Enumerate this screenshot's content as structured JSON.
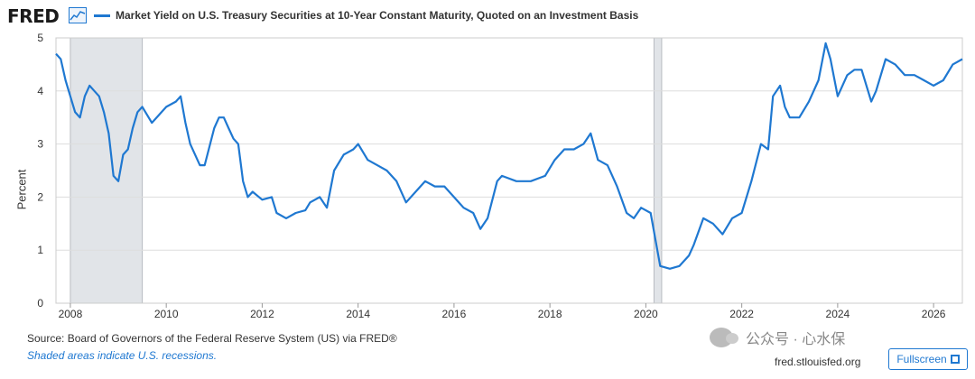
{
  "header": {
    "logo": "FRED",
    "logo_icon": "chart-line-icon",
    "series_title": "Market Yield on U.S. Treasury Securities at 10-Year Constant Maturity, Quoted on an Investment Basis"
  },
  "footer": {
    "source": "Source: Board of Governors of the Federal Reserve System (US) via FRED®",
    "shaded_note": "Shaded areas indicate U.S. recessions.",
    "site": "fred.stlouisfed.org",
    "fullscreen_label": "Fullscreen",
    "fullscreen_icon": "fullscreen-icon",
    "watermark": "公众号 · 心水保"
  },
  "colors": {
    "series": "#1f78d1",
    "recession": "#e1e4e8",
    "grid": "#dddddd"
  },
  "chart_data": {
    "type": "line",
    "title": "",
    "xlabel": "",
    "ylabel": "Percent",
    "xlim": [
      2007.7,
      2026.6
    ],
    "ylim": [
      0,
      5
    ],
    "x_ticks": [
      2008,
      2010,
      2012,
      2014,
      2016,
      2018,
      2020,
      2022,
      2024,
      2026
    ],
    "y_ticks": [
      0,
      1,
      2,
      3,
      4,
      5
    ],
    "grid": true,
    "recessions": [
      [
        2008.0,
        2009.5
      ],
      [
        2020.17,
        2020.33
      ]
    ],
    "series": [
      {
        "x": [
          2007.7,
          2007.8,
          2007.9,
          2008.0,
          2008.1,
          2008.2,
          2008.3,
          2008.4,
          2008.5,
          2008.6,
          2008.7,
          2008.8,
          2008.9,
          2009.0,
          2009.1,
          2009.2,
          2009.3,
          2009.4,
          2009.5,
          2009.7,
          2009.9,
          2010.0,
          2010.2,
          2010.3,
          2010.4,
          2010.5,
          2010.6,
          2010.7,
          2010.8,
          2011.0,
          2011.1,
          2011.2,
          2011.3,
          2011.4,
          2011.5,
          2011.6,
          2011.7,
          2011.8,
          2012.0,
          2012.2,
          2012.3,
          2012.5,
          2012.7,
          2012.9,
          2013.0,
          2013.2,
          2013.35,
          2013.5,
          2013.7,
          2013.9,
          2014.0,
          2014.2,
          2014.4,
          2014.6,
          2014.8,
          2015.0,
          2015.2,
          2015.4,
          2015.6,
          2015.8,
          2016.0,
          2016.2,
          2016.4,
          2016.55,
          2016.7,
          2016.9,
          2017.0,
          2017.3,
          2017.6,
          2017.9,
          2018.1,
          2018.3,
          2018.5,
          2018.7,
          2018.85,
          2019.0,
          2019.2,
          2019.4,
          2019.6,
          2019.75,
          2019.9,
          2020.1,
          2020.2,
          2020.3,
          2020.5,
          2020.7,
          2020.9,
          2021.0,
          2021.2,
          2021.4,
          2021.6,
          2021.8,
          2022.0,
          2022.2,
          2022.4,
          2022.55,
          2022.65,
          2022.8,
          2022.9,
          2023.0,
          2023.2,
          2023.4,
          2023.6,
          2023.75,
          2023.85,
          2024.0,
          2024.2,
          2024.35,
          2024.5,
          2024.7,
          2024.8,
          2024.9,
          2025.0,
          2025.2,
          2025.4,
          2025.6,
          2025.8,
          2026.0,
          2026.2,
          2026.4,
          2026.6
        ],
        "values": [
          4.7,
          4.6,
          4.2,
          3.9,
          3.6,
          3.5,
          3.9,
          4.1,
          4.0,
          3.9,
          3.6,
          3.2,
          2.4,
          2.3,
          2.8,
          2.9,
          3.3,
          3.6,
          3.7,
          3.4,
          3.6,
          3.7,
          3.8,
          3.9,
          3.4,
          3.0,
          2.8,
          2.6,
          2.6,
          3.3,
          3.5,
          3.5,
          3.3,
          3.1,
          3.0,
          2.3,
          2.0,
          2.1,
          1.95,
          2.0,
          1.7,
          1.6,
          1.7,
          1.75,
          1.9,
          2.0,
          1.8,
          2.5,
          2.8,
          2.9,
          3.0,
          2.7,
          2.6,
          2.5,
          2.3,
          1.9,
          2.1,
          2.3,
          2.2,
          2.2,
          2.0,
          1.8,
          1.7,
          1.4,
          1.6,
          2.3,
          2.4,
          2.3,
          2.3,
          2.4,
          2.7,
          2.9,
          2.9,
          3.0,
          3.2,
          2.7,
          2.6,
          2.2,
          1.7,
          1.6,
          1.8,
          1.7,
          1.2,
          0.7,
          0.65,
          0.7,
          0.9,
          1.1,
          1.6,
          1.5,
          1.3,
          1.6,
          1.7,
          2.3,
          3.0,
          2.9,
          3.9,
          4.1,
          3.7,
          3.5,
          3.5,
          3.8,
          4.2,
          4.9,
          4.6,
          3.9,
          4.3,
          4.4,
          4.4,
          3.8,
          4.0,
          4.3,
          4.6,
          4.5,
          4.3,
          4.3,
          4.2,
          4.1,
          4.2,
          4.5,
          4.6
        ]
      }
    ]
  }
}
